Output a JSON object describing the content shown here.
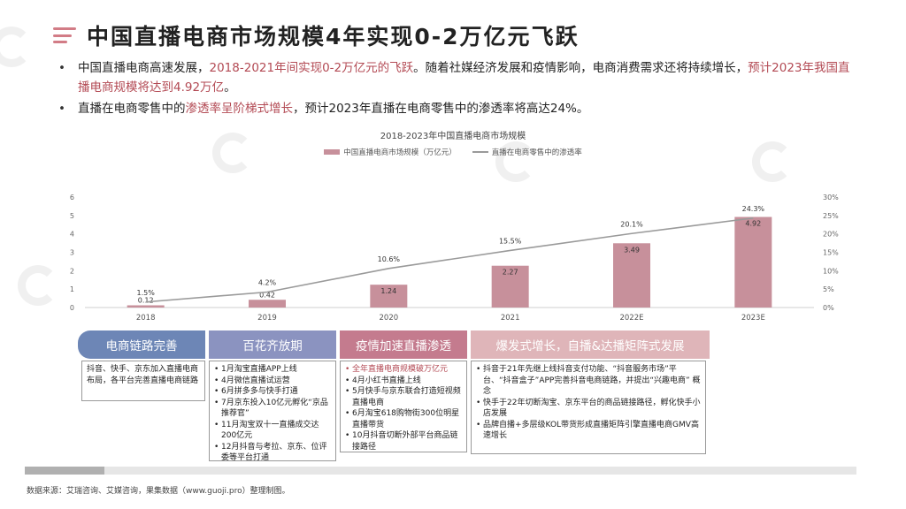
{
  "title": "中国直播电商市场规模4年实现0-2万亿元飞跃",
  "bullets": [
    {
      "parts": [
        {
          "text": "中国直播电商高速发展，",
          "hl": false
        },
        {
          "text": "2018-2021年间实现0-2万亿元的飞跃",
          "hl": true
        },
        {
          "text": "。随着社媒经济发展和疫情影响，电商消费需求还将持续增长，",
          "hl": false
        },
        {
          "text": "预计2023年我国直播电商规模将达到4.92万亿",
          "hl": true
        },
        {
          "text": "。",
          "hl": false
        }
      ]
    },
    {
      "parts": [
        {
          "text": "直播在电商零售中的",
          "hl": false
        },
        {
          "text": "渗透率呈阶梯式增长",
          "hl": true
        },
        {
          "text": "，预计2023年直播在电商零售中的渗透率将高达24%。",
          "hl": false
        }
      ]
    }
  ],
  "chart_data": {
    "type": "bar",
    "title": "2018-2023年中国直播电商市场规模",
    "categories": [
      "2018",
      "2019",
      "2020",
      "2021",
      "2022E",
      "2023E"
    ],
    "series": [
      {
        "name": "中国直播电商市场规模（万亿元）",
        "type": "bar",
        "axis": "left",
        "values": [
          0.12,
          0.42,
          1.24,
          2.27,
          3.49,
          4.92
        ],
        "labels": [
          "0.12",
          "0.42",
          "1.24",
          "2.27",
          "3.49",
          "4.92"
        ]
      },
      {
        "name": "直播在电商零售中的渗透率",
        "type": "line",
        "axis": "right",
        "values": [
          1.5,
          4.2,
          10.6,
          15.5,
          20.1,
          24.3
        ],
        "labels": [
          "1.5%",
          "4.2%",
          "10.6%",
          "15.5%",
          "20.1%",
          "24.3%"
        ]
      }
    ],
    "y_left": {
      "ticks": [
        "0",
        "1",
        "2",
        "3",
        "4",
        "5",
        "6"
      ],
      "range": [
        0,
        6
      ]
    },
    "y_right": {
      "ticks": [
        "0%",
        "5%",
        "10%",
        "15%",
        "20%",
        "25%",
        "30%"
      ],
      "range": [
        0,
        30
      ]
    },
    "colors": {
      "bar": "#c7909b",
      "line": "#9a9a9a"
    }
  },
  "phases": [
    {
      "label": "电商链路完善",
      "items": [
        {
          "text": "抖音、快手、京东加入直播电商布局，各平台完善直播电商链路",
          "red": false
        }
      ],
      "plain": true
    },
    {
      "label": "百花齐放期",
      "items": [
        {
          "text": "1月淘宝直播APP上线",
          "red": false
        },
        {
          "text": "4月微信直播试运营",
          "red": false
        },
        {
          "text": "6月拼多多与快手打通",
          "red": false
        },
        {
          "text": "7月京东投入10亿元孵化“京品推荐官”",
          "red": false
        },
        {
          "text": "11月淘宝双十一直播成交达200亿元",
          "red": false
        },
        {
          "text": "12月抖音与考拉、京东、位评委等平台打通",
          "red": false
        }
      ]
    },
    {
      "label": "疫情加速直播渗透",
      "items": [
        {
          "text": "全年直播电商规模破万亿元",
          "red": true
        },
        {
          "text": "4月小红书直播上线",
          "red": false
        },
        {
          "text": "5月快手与京东联合打造短视频直播电商",
          "red": false
        },
        {
          "text": "6月淘宝618购物街300位明星直播带货",
          "red": false
        },
        {
          "text": "10月抖音切断外部平台商品链接路径",
          "red": false
        }
      ]
    },
    {
      "label": "爆发式增长，自播&达播矩阵式发展",
      "items": [
        {
          "text": "抖音于21年先继上线抖音支付功能、“抖音服务市场”平台、“抖音盒子”APP完善抖音电商链路，并提出“兴趣电商” 概念",
          "red": false
        },
        {
          "text": "快手于22年切断淘宝、京东平台的商品链接路径，孵化快手小店发展",
          "red": false
        },
        {
          "text": "品牌自播+多层级KOL带货形成直播矩阵引擎直播电商GMV高速增长",
          "red": false
        }
      ]
    }
  ],
  "source": "数据来源：艾瑞咨询、艾媒咨询，果集数据（www.guoji.pro）整理制图。",
  "watermark": "果集"
}
